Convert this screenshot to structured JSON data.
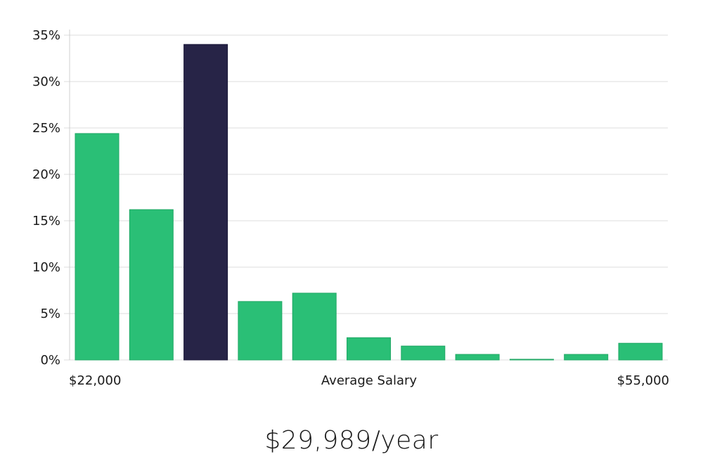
{
  "chart_data": {
    "type": "bar",
    "xlabel": "Average Salary",
    "x_range_labels": {
      "min": "$22,000",
      "max": "$55,000"
    },
    "values": [
      24.4,
      16.2,
      34.0,
      6.3,
      7.2,
      2.4,
      1.5,
      0.6,
      0.05,
      0.6,
      1.8
    ],
    "highlight_index": 2,
    "ylim": [
      0,
      35
    ],
    "yticks": [
      0,
      5,
      10,
      15,
      20,
      25,
      30,
      35
    ],
    "ytick_labels": [
      "0%",
      "5%",
      "10%",
      "15%",
      "20%",
      "25%",
      "30%",
      "35%"
    ],
    "grid": true,
    "colors": {
      "bar": "#2abf76",
      "highlight": "#272447"
    }
  },
  "headline": "$29,989/year"
}
